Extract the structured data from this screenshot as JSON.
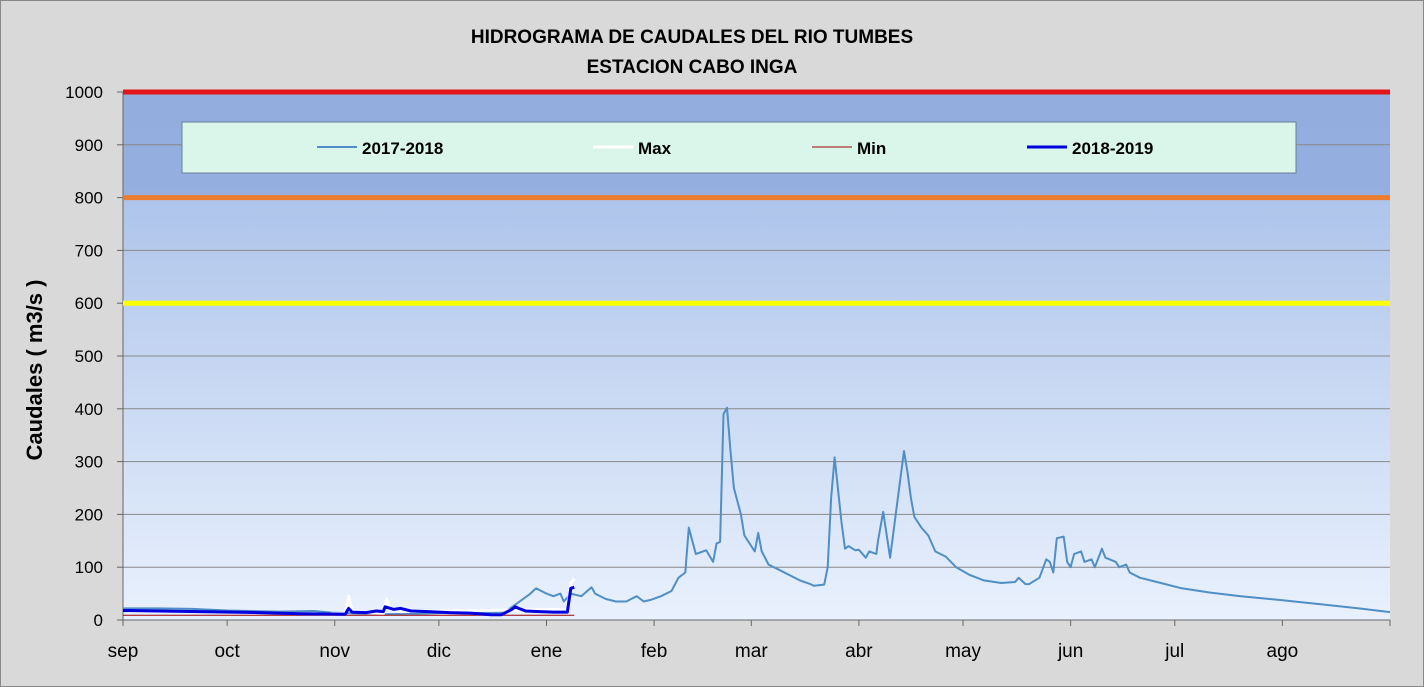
{
  "chart_data": {
    "type": "line",
    "title": "HIDROGRAMA DE CAUDALES DEL RIO  TUMBES",
    "subtitle": "ESTACION  CABO INGA",
    "y_label": "Caudales ( m3/s )",
    "xlim": [
      0,
      365
    ],
    "xticks": [
      {
        "value": 0,
        "label": "sep"
      },
      {
        "value": 30,
        "label": "oct"
      },
      {
        "value": 61,
        "label": "nov"
      },
      {
        "value": 91,
        "label": "dic"
      },
      {
        "value": 122,
        "label": "ene"
      },
      {
        "value": 153,
        "label": "feb"
      },
      {
        "value": 181,
        "label": "mar"
      },
      {
        "value": 212,
        "label": "abr"
      },
      {
        "value": 242,
        "label": "may"
      },
      {
        "value": 273,
        "label": "jun"
      },
      {
        "value": 303,
        "label": "jul"
      },
      {
        "value": 334,
        "label": "ago"
      }
    ],
    "ylim": [
      0,
      1000
    ],
    "yticks": [
      0,
      100,
      200,
      300,
      400,
      500,
      600,
      700,
      800,
      900,
      1000
    ],
    "grid": true,
    "reference_lines": [
      {
        "value": 1000,
        "color": "#e3151a"
      },
      {
        "value": 800,
        "color": "#ed7d31"
      },
      {
        "value": 600,
        "color": "#ffff00"
      }
    ],
    "series": [
      {
        "name": "2017-2018",
        "color": "#4f8fc6",
        "width": 2,
        "x": [
          0,
          10,
          20,
          30,
          45,
          55,
          60,
          70,
          75,
          85,
          95,
          110,
          117,
          119,
          122,
          124,
          126,
          127,
          129,
          132,
          135,
          136,
          139,
          142,
          145,
          148,
          150,
          152,
          155,
          158,
          160,
          162,
          163,
          165,
          168,
          170,
          171,
          172,
          173,
          174,
          175,
          176,
          178,
          179,
          181,
          182,
          183,
          184,
          186,
          189,
          192,
          195,
          198,
          199,
          202,
          203,
          204,
          205,
          207,
          208,
          209,
          211,
          212,
          214,
          215,
          217,
          217.5,
          219,
          221,
          223,
          225,
          226,
          227,
          228,
          230,
          232,
          234,
          237,
          240,
          244,
          248,
          253,
          257,
          258,
          260,
          261,
          264,
          266,
          267,
          268,
          269,
          271,
          272,
          273,
          274,
          276,
          277,
          279,
          280,
          282,
          283,
          286,
          287,
          289,
          290,
          293,
          299,
          305,
          313,
          322,
          333,
          345,
          356,
          365
        ],
        "values": [
          22,
          22,
          21,
          18,
          16,
          17,
          14,
          12,
          11,
          12,
          14,
          15,
          48,
          60,
          50,
          45,
          50,
          35,
          50,
          45,
          62,
          50,
          40,
          35,
          35,
          45,
          35,
          38,
          45,
          55,
          80,
          90,
          175,
          125,
          132,
          110,
          145,
          148,
          390,
          402,
          320,
          250,
          200,
          160,
          140,
          130,
          165,
          130,
          105,
          95,
          85,
          75,
          68,
          65,
          67,
          100,
          230,
          308,
          185,
          135,
          140,
          132,
          133,
          118,
          130,
          125,
          150,
          205,
          118,
          220,
          320,
          280,
          230,
          195,
          175,
          160,
          130,
          120,
          100,
          85,
          75,
          70,
          72,
          80,
          68,
          68,
          80,
          115,
          110,
          90,
          155,
          158,
          110,
          100,
          125,
          130,
          110,
          115,
          100,
          135,
          118,
          110,
          100,
          105,
          90,
          80,
          70,
          60,
          52,
          45,
          38,
          30,
          22,
          15
        ]
      },
      {
        "name": "Max",
        "color": "#ffffff",
        "width": 3,
        "x": [
          60,
          64,
          65,
          66,
          70,
          75,
          76,
          77,
          80,
          128,
          129,
          130
        ],
        "values": [
          12,
          12,
          45,
          18,
          14,
          12,
          40,
          20,
          16,
          20,
          70,
          78
        ]
      },
      {
        "name": "Min",
        "color": "#a00000",
        "width": 1,
        "x": [
          0,
          40,
          80,
          120,
          130
        ],
        "values": [
          9,
          9,
          9,
          9,
          9
        ]
      },
      {
        "name": "2018-2019",
        "color": "#0000e0",
        "width": 3,
        "x": [
          0,
          22,
          39,
          51,
          64,
          65,
          66,
          70,
          73,
          75,
          75.5,
          78,
          80,
          83,
          88,
          94,
          100,
          106,
          109,
          112,
          113,
          114,
          116,
          120,
          124,
          128,
          129,
          130
        ],
        "values": [
          18,
          16,
          14,
          12,
          11,
          22,
          15,
          14,
          17,
          16,
          25,
          20,
          22,
          17,
          16,
          14,
          13,
          10,
          10,
          20,
          25,
          22,
          17,
          16,
          15,
          15,
          60,
          62
        ]
      }
    ]
  }
}
